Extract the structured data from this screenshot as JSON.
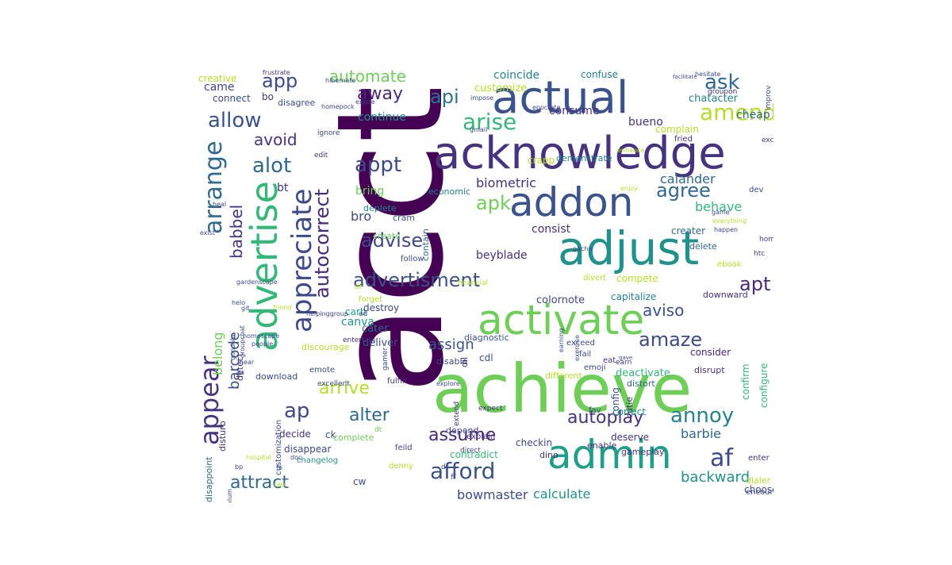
{
  "palette": {
    "dark_purple": "#440154",
    "indigo": "#3b528b",
    "blue": "#31688e",
    "teal": "#21918c",
    "green": "#35b779",
    "lime": "#6ece58",
    "yellow": "#b5de2b",
    "bright_yellow": "#d8e219"
  },
  "words": [
    {
      "text": "acct",
      "color": "#440154"
    },
    {
      "text": "achieve",
      "color": "#6ece58"
    },
    {
      "text": "acknowledge",
      "color": "#46327e"
    },
    {
      "text": "actual",
      "color": "#3b528b"
    },
    {
      "text": "activate",
      "color": "#6ece58"
    },
    {
      "text": "advertise",
      "color": "#35b779"
    },
    {
      "text": "admin",
      "color": "#1f9e89"
    },
    {
      "text": "addon",
      "color": "#3b528b"
    },
    {
      "text": "adjust",
      "color": "#21918c"
    },
    {
      "text": "appreciate",
      "color": "#3e4989"
    },
    {
      "text": "appear",
      "color": "#46327e"
    },
    {
      "text": "arrange",
      "color": "#31688e"
    },
    {
      "text": "advertisment",
      "color": "#3b528b"
    },
    {
      "text": "autocorrect",
      "color": "#482878"
    },
    {
      "text": "amaze",
      "color": "#3e4989"
    },
    {
      "text": "alter",
      "color": "#31688e"
    },
    {
      "text": "annoy",
      "color": "#26828e"
    },
    {
      "text": "af",
      "color": "#3e4989"
    },
    {
      "text": "afford",
      "color": "#3b528b"
    },
    {
      "text": "assume",
      "color": "#482878"
    },
    {
      "text": "attract",
      "color": "#31688e"
    },
    {
      "text": "autoplay",
      "color": "#46327e"
    },
    {
      "text": "arise",
      "color": "#35b779"
    },
    {
      "text": "amend",
      "color": "#b5de2b"
    },
    {
      "text": "allow",
      "color": "#3b528b"
    },
    {
      "text": "ask",
      "color": "#31688e"
    },
    {
      "text": "app",
      "color": "#3e4989"
    },
    {
      "text": "automate",
      "color": "#6ece58"
    },
    {
      "text": "appt",
      "color": "#3e4989"
    },
    {
      "text": "agree",
      "color": "#31688e"
    },
    {
      "text": "alot",
      "color": "#31688e"
    },
    {
      "text": "advise",
      "color": "#3e4989"
    },
    {
      "text": "apk",
      "color": "#6ece58"
    },
    {
      "text": "api",
      "color": "#2c728e"
    },
    {
      "text": "away",
      "color": "#482878"
    },
    {
      "text": "arrive",
      "color": "#b5de2b"
    },
    {
      "text": "assign",
      "color": "#3b528b"
    },
    {
      "text": "aviso",
      "color": "#3b528b"
    },
    {
      "text": "apt",
      "color": "#482878"
    },
    {
      "text": "ap",
      "color": "#3e4989"
    },
    {
      "text": "avoid",
      "color": "#46327e"
    },
    {
      "text": "babbel",
      "color": "#46327e"
    },
    {
      "text": "barcode",
      "color": "#3b528b"
    },
    {
      "text": "belong",
      "color": "#6ece58"
    },
    {
      "text": "barbie",
      "color": "#31688e"
    },
    {
      "text": "behave",
      "color": "#35b779"
    },
    {
      "text": "backward",
      "color": "#21918c"
    },
    {
      "text": "bowmaster",
      "color": "#3e4989"
    },
    {
      "text": "calculate",
      "color": "#21918c"
    },
    {
      "text": "biometric",
      "color": "#46327e"
    },
    {
      "text": "calander",
      "color": "#31688e"
    },
    {
      "text": "bring",
      "color": "#6ece58"
    },
    {
      "text": "bro",
      "color": "#3e4989"
    },
    {
      "text": "bt",
      "color": "#46327e"
    },
    {
      "text": "bueno",
      "color": "#46327e"
    },
    {
      "text": "coincide",
      "color": "#26828e"
    },
    {
      "text": "confuse",
      "color": "#26828e"
    },
    {
      "text": "chatacter",
      "color": "#26828e"
    },
    {
      "text": "cheap",
      "color": "#31688e"
    },
    {
      "text": "complain",
      "color": "#b5de2b"
    },
    {
      "text": "consume",
      "color": "#46327e"
    },
    {
      "text": "continue",
      "color": "#21918c"
    },
    {
      "text": "customize",
      "color": "#b5de2b"
    },
    {
      "text": "creative",
      "color": "#b5de2b"
    },
    {
      "text": "came",
      "color": "#3e4989"
    },
    {
      "text": "connect",
      "color": "#3e4989"
    },
    {
      "text": "bo",
      "color": "#46327e"
    },
    {
      "text": "disagree",
      "color": "#3e4989"
    },
    {
      "text": "consist",
      "color": "#46327e"
    },
    {
      "text": "creater",
      "color": "#31688e"
    },
    {
      "text": "delete",
      "color": "#31688e"
    },
    {
      "text": "downward",
      "color": "#46327e"
    },
    {
      "text": "compete",
      "color": "#b5de2b"
    },
    {
      "text": "capitalize",
      "color": "#26828e"
    },
    {
      "text": "colornote",
      "color": "#3e4989"
    },
    {
      "text": "beyblade",
      "color": "#46327e"
    },
    {
      "text": "canva",
      "color": "#21918c"
    },
    {
      "text": "carb",
      "color": "#1f9e89"
    },
    {
      "text": "destroy",
      "color": "#3e4989"
    },
    {
      "text": "deliver",
      "color": "#3b528b"
    },
    {
      "text": "cater",
      "color": "#31688e"
    },
    {
      "text": "contain",
      "color": "#31688e"
    },
    {
      "text": "crapp",
      "color": "#b5de2b"
    },
    {
      "text": "demonstrate",
      "color": "#26828e"
    },
    {
      "text": "economic",
      "color": "#26828e"
    },
    {
      "text": "deplete",
      "color": "#26828e"
    },
    {
      "text": "cram",
      "color": "#3b528b"
    },
    {
      "text": "create",
      "color": "#6ece58"
    },
    {
      "text": "confirm",
      "color": "#35b779"
    },
    {
      "text": "configure",
      "color": "#35b779"
    },
    {
      "text": "consider",
      "color": "#482878"
    },
    {
      "text": "config",
      "color": "#3b528b"
    },
    {
      "text": "correct",
      "color": "#21918c"
    },
    {
      "text": "cutie",
      "color": "#46327e"
    },
    {
      "text": "deactivate",
      "color": "#35b779"
    },
    {
      "text": "distort",
      "color": "#31688e"
    },
    {
      "text": "cdl",
      "color": "#3b528b"
    },
    {
      "text": "diagnostic",
      "color": "#3b528b"
    },
    {
      "text": "choose",
      "color": "#3e4989"
    },
    {
      "text": "dialer",
      "color": "#b5de2b"
    },
    {
      "text": "encourage",
      "color": "#3e4989"
    },
    {
      "text": "enter",
      "color": "#46327e"
    },
    {
      "text": "checkin",
      "color": "#3e4989"
    },
    {
      "text": "deserve",
      "color": "#46327e"
    },
    {
      "text": "contradict",
      "color": "#35b779"
    },
    {
      "text": "dino",
      "color": "#46327e"
    },
    {
      "text": "enable",
      "color": "#46327e"
    },
    {
      "text": "gameplay",
      "color": "#46327e"
    },
    {
      "text": "depend",
      "color": "#3e4989"
    },
    {
      "text": "customization",
      "color": "#3e4989"
    },
    {
      "text": "emote",
      "color": "#3e4989"
    },
    {
      "text": "excellent",
      "color": "#3e4989"
    },
    {
      "text": "decide",
      "color": "#46327e"
    },
    {
      "text": "disappear",
      "color": "#3e4989"
    },
    {
      "text": "ck",
      "color": "#3e4989"
    },
    {
      "text": "complete",
      "color": "#6ece58"
    },
    {
      "text": "cw",
      "color": "#3e4989"
    },
    {
      "text": "denny",
      "color": "#b5de2b"
    },
    {
      "text": "changelog",
      "color": "#21918c"
    },
    {
      "text": "dreamtrip",
      "color": "#21918c"
    },
    {
      "text": "disappoint",
      "color": "#31688e"
    },
    {
      "text": "disturb",
      "color": "#46327e"
    },
    {
      "text": "detect",
      "color": "#46327e"
    },
    {
      "text": "discourage",
      "color": "#b5de2b"
    },
    {
      "text": "download",
      "color": "#3e4989"
    },
    {
      "text": "follow",
      "color": "#3e4989"
    },
    {
      "text": "disable",
      "color": "#3e4989"
    },
    {
      "text": "different",
      "color": "#b5de2b"
    },
    {
      "text": "disrupt",
      "color": "#46327e"
    },
    {
      "text": "dil",
      "color": "#46327e"
    },
    {
      "text": "ebook",
      "color": "#b5de2b"
    },
    {
      "text": "dev",
      "color": "#3e4989"
    },
    {
      "text": "eat",
      "color": "#46327e"
    },
    {
      "text": "emoji",
      "color": "#3e4989"
    },
    {
      "text": "divert",
      "color": "#b5de2b"
    },
    {
      "text": "exceed",
      "color": "#3e4989"
    },
    {
      "text": "fail",
      "color": "#3e4989"
    },
    {
      "text": "fav",
      "color": "#3e4989"
    },
    {
      "text": "earn",
      "color": "#46327e"
    },
    {
      "text": "fried",
      "color": "#46327e"
    },
    {
      "text": "excel",
      "color": "#46327e"
    },
    {
      "text": "feild",
      "color": "#3e4989"
    },
    {
      "text": "forget",
      "color": "#b5de2b"
    },
    {
      "text": "entertain",
      "color": "#46327e"
    },
    {
      "text": "fulfill",
      "color": "#46327e"
    },
    {
      "text": "explore",
      "color": "#3e4989"
    },
    {
      "text": "extend",
      "color": "#46327e"
    },
    {
      "text": "explain",
      "color": "#46327e"
    },
    {
      "text": "financial",
      "color": "#b5de2b"
    },
    {
      "text": "expect",
      "color": "#46327e"
    },
    {
      "text": "direct",
      "color": "#3e4989"
    },
    {
      "text": "gamer",
      "color": "#3e4989"
    },
    {
      "text": "df",
      "color": "#b5de2b"
    },
    {
      "text": "ff",
      "color": "#3e4989"
    },
    {
      "text": "dr",
      "color": "#3e4989"
    },
    {
      "text": "dt",
      "color": "#6ece58"
    },
    {
      "text": "ed",
      "color": "#3e4989"
    },
    {
      "text": "edit",
      "color": "#46327e"
    },
    {
      "text": "ignore",
      "color": "#3e4989"
    },
    {
      "text": "improv",
      "color": "#3e4989"
    },
    {
      "text": "homescreen",
      "color": "#3e4989"
    },
    {
      "text": "htc",
      "color": "#3e4989"
    },
    {
      "text": "groupon",
      "color": "#46327e"
    },
    {
      "text": "hesitate",
      "color": "#3e4989"
    },
    {
      "text": "facilitate",
      "color": "#3e4989"
    },
    {
      "text": "frustrate",
      "color": "#46327e"
    },
    {
      "text": "homepock",
      "color": "#3e4989"
    },
    {
      "text": "hibernate",
      "color": "#3e4989"
    },
    {
      "text": "expire",
      "color": "#3e4989"
    },
    {
      "text": "gmail",
      "color": "#3e4989"
    },
    {
      "text": "epocrate",
      "color": "#3e4989"
    },
    {
      "text": "impose",
      "color": "#3e4989"
    },
    {
      "text": "enhance",
      "color": "#b5de2b"
    },
    {
      "text": "enjoy",
      "color": "#b5de2b"
    },
    {
      "text": "gacha",
      "color": "#3e4989"
    },
    {
      "text": "everything",
      "color": "#b5de2b"
    },
    {
      "text": "game",
      "color": "#3e4989"
    },
    {
      "text": "gave",
      "color": "#3e4989"
    },
    {
      "text": "happen",
      "color": "#3e4989"
    },
    {
      "text": "earning",
      "color": "#3e4989"
    },
    {
      "text": "exercise",
      "color": "#3e4989"
    },
    {
      "text": "gundula",
      "color": "#3e4989"
    },
    {
      "text": "groupchat",
      "color": "#3e4989"
    },
    {
      "text": "people",
      "color": "#3e4989"
    },
    {
      "text": "gardenscape",
      "color": "#3e4989"
    },
    {
      "text": "helo",
      "color": "#3e4989"
    },
    {
      "text": "heal",
      "color": "#3e4989"
    },
    {
      "text": "exist",
      "color": "#3e4989"
    },
    {
      "text": "friend",
      "color": "#b5de2b"
    },
    {
      "text": "helpinggroup",
      "color": "#3e4989"
    },
    {
      "text": "homescape",
      "color": "#3e4989"
    },
    {
      "text": "git",
      "color": "#3e4989"
    },
    {
      "text": "hear",
      "color": "#3e4989"
    },
    {
      "text": "ga",
      "color": "#3e4989"
    },
    {
      "text": "fb",
      "color": "#3e4989"
    },
    {
      "text": "doc",
      "color": "#3e4989"
    },
    {
      "text": "bp",
      "color": "#3e4989"
    },
    {
      "text": "alum",
      "color": "#3e4989"
    },
    {
      "text": "hospital",
      "color": "#b5de2b"
    },
    {
      "text": "cap",
      "color": "#b5de2b"
    }
  ]
}
